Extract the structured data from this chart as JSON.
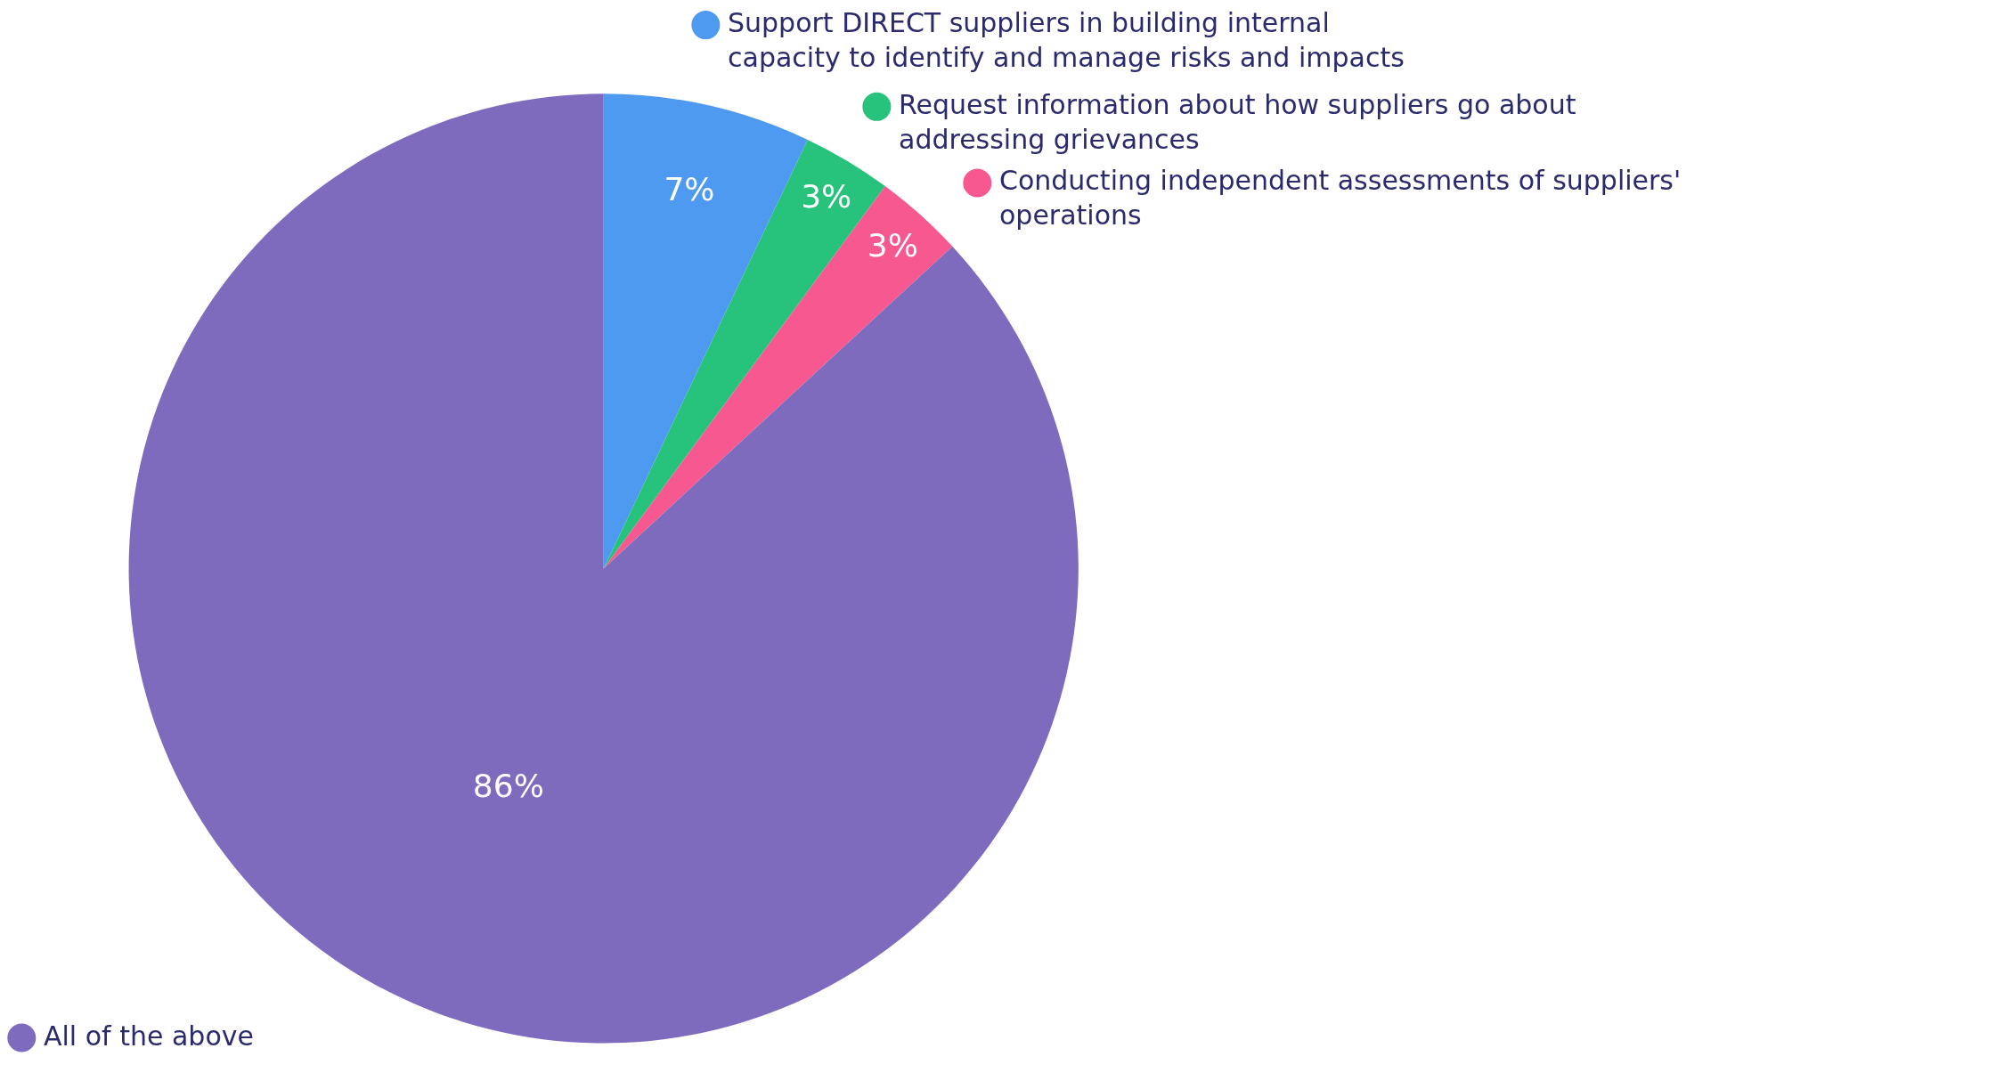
{
  "chart_data": {
    "type": "pie",
    "categories": [
      "Support DIRECT suppliers in building internal capacity to identify and manage risks and impacts",
      "Request information about how suppliers go about addressing grievances",
      "Conducting independent assessments of suppliers' operations",
      "All of the above"
    ],
    "values": [
      7,
      3,
      3,
      86
    ],
    "value_labels": [
      "7%",
      "3%",
      "3%",
      "86%"
    ],
    "colors": [
      "#4e9af1",
      "#27c27c",
      "#f7588f",
      "#7e6bbd"
    ],
    "legend": "top"
  }
}
